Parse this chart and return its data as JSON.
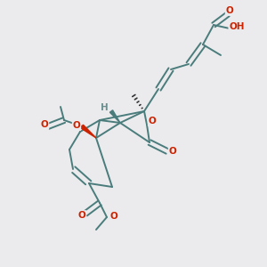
{
  "bg_color": "#ebebed",
  "bond_color": "#4a7c7c",
  "o_color": "#cc2200",
  "h_color": "#6a9090",
  "lw": 1.4,
  "figsize": [
    3.0,
    3.0
  ],
  "dpi": 100,
  "xlim": [
    0,
    300
  ],
  "ylim": [
    0,
    300
  ]
}
